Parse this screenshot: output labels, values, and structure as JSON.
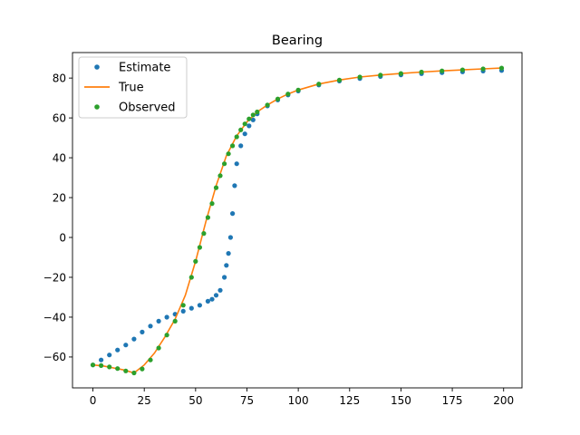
{
  "chart_data": {
    "type": "scatter",
    "title": "Bearing",
    "xlabel": "",
    "ylabel": "",
    "xlim": [
      -9.95,
      208.95
    ],
    "ylim": [
      -75.5,
      92.8
    ],
    "xticks": [
      0,
      25,
      50,
      75,
      100,
      125,
      150,
      175,
      200
    ],
    "yticks": [
      -60,
      -40,
      -20,
      0,
      20,
      40,
      60,
      80
    ],
    "xtick_labels": [
      "0",
      "25",
      "50",
      "75",
      "100",
      "125",
      "150",
      "175",
      "200"
    ],
    "ytick_labels": [
      "−60",
      "−40",
      "−20",
      "0",
      "20",
      "40",
      "60",
      "80"
    ],
    "grid": false,
    "legend": "upper-left",
    "series": [
      {
        "name": "Estimate",
        "kind": "points",
        "color": "#1f77b4",
        "x": [
          0,
          4,
          8,
          12,
          16,
          20,
          24,
          28,
          32,
          36,
          40,
          44,
          48,
          52,
          56,
          58,
          60,
          62,
          64,
          65,
          66,
          67,
          68,
          69,
          70,
          72,
          74,
          76,
          78,
          80,
          85,
          90,
          95,
          100,
          110,
          120,
          130,
          140,
          150,
          160,
          170,
          180,
          190,
          199
        ],
        "y": [
          -64,
          -61.5,
          -59,
          -56.5,
          -54,
          -51,
          -47.5,
          -44.5,
          -42,
          -40,
          -38.5,
          -37,
          -35.5,
          -34,
          -32,
          -31,
          -29,
          -26.5,
          -20,
          -14,
          -8,
          0,
          12,
          26,
          37,
          46,
          52,
          56,
          59,
          62,
          66,
          69,
          71.5,
          73.5,
          76.5,
          78.5,
          79.8,
          80.8,
          81.6,
          82.2,
          82.7,
          83.1,
          83.5,
          83.8
        ]
      },
      {
        "name": "True",
        "kind": "line",
        "color": "#ff7f0e",
        "x": [
          0,
          5,
          10,
          15,
          20,
          25,
          30,
          35,
          40,
          45,
          50,
          55,
          60,
          65,
          70,
          75,
          80,
          85,
          90,
          95,
          100,
          110,
          120,
          130,
          140,
          150,
          160,
          170,
          180,
          190,
          199
        ],
        "y": [
          -64,
          -64.5,
          -65.5,
          -66.5,
          -68,
          -64,
          -58,
          -50,
          -41,
          -29,
          -12,
          8,
          26,
          41,
          51,
          58,
          63,
          66.5,
          69.5,
          72,
          74,
          77,
          79,
          80.5,
          81.5,
          82.3,
          83,
          83.6,
          84.1,
          84.6,
          85
        ]
      },
      {
        "name": "Observed",
        "kind": "points",
        "color": "#2ca02c",
        "x": [
          0,
          4,
          8,
          12,
          16,
          20,
          24,
          28,
          32,
          36,
          40,
          44,
          48,
          50,
          52,
          54,
          56,
          58,
          60,
          62,
          64,
          66,
          68,
          70,
          72,
          74,
          76,
          78,
          80,
          85,
          90,
          95,
          100,
          110,
          120,
          130,
          140,
          150,
          160,
          170,
          180,
          190,
          199
        ],
        "y": [
          -64,
          -64.3,
          -65,
          -65.8,
          -67,
          -68,
          -66,
          -61.5,
          -55.5,
          -49,
          -42,
          -34,
          -20,
          -12,
          -5,
          2,
          10,
          17,
          25,
          31,
          37,
          42,
          46,
          50.5,
          54,
          57,
          59.5,
          61.5,
          63,
          66.5,
          69.5,
          72,
          74,
          77,
          79,
          80.5,
          81.5,
          82.3,
          83,
          83.6,
          84.1,
          84.6,
          85
        ]
      }
    ]
  }
}
